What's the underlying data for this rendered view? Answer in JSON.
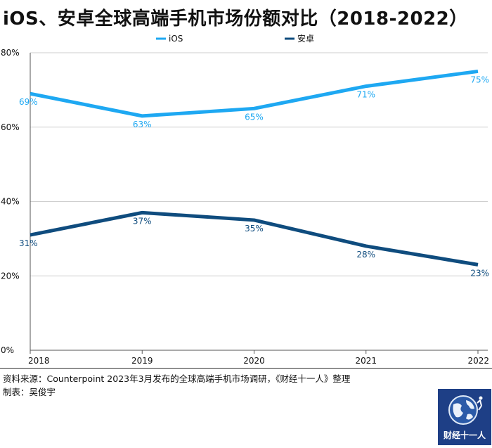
{
  "title": "iOS、安卓全球高端手机市场份额对比（2018-2022）",
  "source": "资料来源：Counterpoint 2023年3月发布的全球高端手机市场调研，《财经十一人》整理",
  "maker": "制表：吴俊宇",
  "logo_text": "财经十一人",
  "colors": {
    "ios": "#1ea8f2",
    "android": "#0f4c7e"
  },
  "chart_data": {
    "type": "line",
    "x": [
      "2018",
      "2019",
      "2020",
      "2021",
      "2022"
    ],
    "series": [
      {
        "name": "iOS",
        "values": [
          69,
          63,
          65,
          71,
          75
        ],
        "labels": [
          "69%",
          "63%",
          "65%",
          "71%",
          "75%"
        ]
      },
      {
        "name": "安卓",
        "values": [
          31,
          37,
          35,
          28,
          23
        ],
        "labels": [
          "31%",
          "37%",
          "35%",
          "28%",
          "23%"
        ]
      }
    ],
    "yticks": [
      "0%",
      "20%",
      "40%",
      "60%",
      "80%"
    ],
    "ylim": [
      0,
      80
    ],
    "legend_position": "top",
    "grid": true
  }
}
